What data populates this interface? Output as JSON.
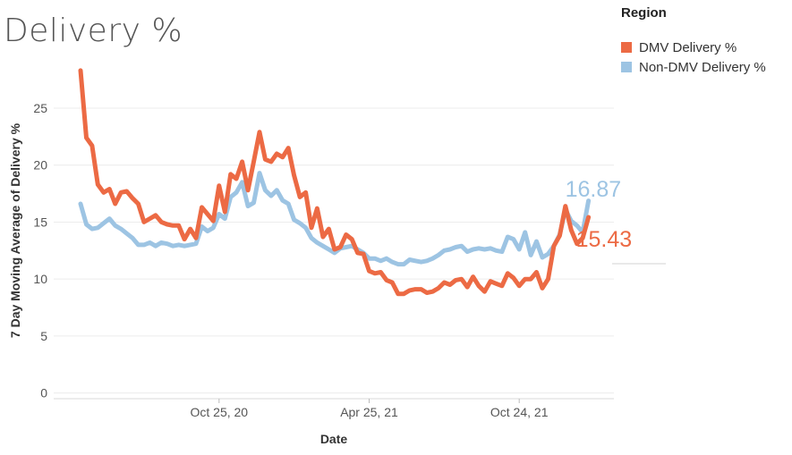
{
  "chart_data": {
    "type": "line",
    "title": "Delivery %",
    "xlabel": "Date",
    "ylabel": "7 Day Moving Average of Delivery %",
    "ylim": [
      -0.5,
      29
    ],
    "yticks": [
      0,
      5,
      10,
      15,
      20,
      25
    ],
    "xticks": [
      {
        "label": "Oct 25, 20",
        "index": 24
      },
      {
        "label": "Apr 25, 21",
        "index": 50
      },
      {
        "label": "Oct 24, 21",
        "index": 76
      }
    ],
    "grid": true,
    "legend_title": "Region",
    "legend_position": "top-right",
    "series": [
      {
        "name": "DMV Delivery %",
        "color": "#ec6a44",
        "end_label": "15.43",
        "values": [
          28.3,
          22.4,
          21.7,
          18.3,
          17.6,
          17.9,
          16.6,
          17.6,
          17.7,
          17.1,
          16.6,
          15.0,
          15.3,
          15.6,
          15.0,
          14.8,
          14.7,
          14.7,
          13.5,
          14.4,
          13.6,
          16.3,
          15.7,
          15.1,
          18.2,
          15.9,
          19.2,
          18.8,
          20.3,
          17.8,
          20.3,
          22.9,
          20.5,
          20.3,
          21.0,
          20.7,
          21.5,
          19.1,
          17.2,
          17.6,
          14.5,
          16.2,
          13.7,
          14.4,
          12.6,
          12.8,
          13.9,
          13.5,
          12.3,
          12.2,
          10.7,
          10.5,
          10.6,
          9.9,
          9.7,
          8.7,
          8.7,
          9.0,
          9.1,
          9.1,
          8.8,
          8.9,
          9.2,
          9.7,
          9.5,
          9.9,
          10.0,
          9.3,
          10.2,
          9.4,
          8.9,
          9.8,
          9.6,
          9.4,
          10.5,
          10.1,
          9.4,
          10.0,
          10.0,
          10.6,
          9.2,
          10.0,
          12.9,
          13.8,
          16.4,
          14.3,
          13.1,
          13.6,
          15.43
        ]
      },
      {
        "name": "Non-DMV Delivery %",
        "color": "#9dc4e3",
        "end_label": "16.87",
        "values": [
          16.6,
          14.8,
          14.4,
          14.5,
          14.9,
          15.3,
          14.7,
          14.4,
          14.0,
          13.6,
          13.0,
          13.0,
          13.2,
          12.9,
          13.2,
          13.1,
          12.9,
          13.0,
          12.9,
          13.0,
          13.1,
          14.6,
          14.2,
          14.5,
          15.7,
          15.3,
          17.2,
          17.6,
          18.5,
          16.4,
          16.7,
          19.3,
          17.8,
          17.3,
          17.8,
          16.9,
          16.6,
          15.2,
          14.9,
          14.5,
          13.6,
          13.2,
          12.9,
          12.6,
          12.3,
          12.7,
          12.8,
          12.9,
          12.6,
          12.3,
          11.8,
          11.8,
          11.6,
          11.8,
          11.5,
          11.3,
          11.3,
          11.7,
          11.6,
          11.5,
          11.6,
          11.8,
          12.1,
          12.5,
          12.6,
          12.8,
          12.9,
          12.4,
          12.6,
          12.7,
          12.6,
          12.7,
          12.5,
          12.4,
          13.7,
          13.5,
          12.6,
          14.1,
          12.1,
          13.3,
          11.9,
          12.2,
          12.9,
          13.9,
          16.1,
          15.1,
          14.7,
          14.1,
          16.87
        ]
      }
    ]
  }
}
